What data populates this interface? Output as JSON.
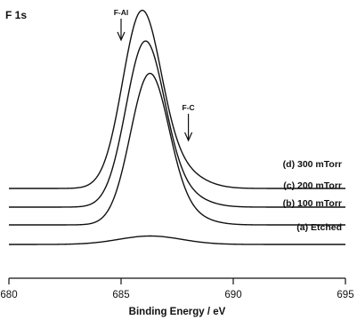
{
  "chart_data": {
    "type": "line",
    "title": "F 1s",
    "xlabel": "Binding Energy / eV",
    "xlim": [
      680,
      695
    ],
    "xticks": [
      680,
      685,
      690,
      695
    ],
    "annotations": [
      {
        "text": "F-Al",
        "x": 685.0
      },
      {
        "text": "F-C",
        "x": 688.0
      }
    ],
    "series": [
      {
        "name": "(d) 300 mTorr",
        "peak_x": 685.9,
        "peak_height": 1.0,
        "width": 0.85,
        "tail": 0.12,
        "tail_center": 687.3,
        "tail_width": 1.1
      },
      {
        "name": "(c) 200 mTorr",
        "peak_x": 686.05,
        "peak_height": 0.93,
        "width": 0.85,
        "tail": 0.1,
        "tail_center": 687.3,
        "tail_width": 1.1
      },
      {
        "name": "(b) 100 mTorr",
        "peak_x": 686.25,
        "peak_height": 0.85,
        "width": 0.85,
        "tail": 0.08,
        "tail_center": 687.4,
        "tail_width": 1.1
      },
      {
        "name": "(a) Etched",
        "peak_x": 686.3,
        "peak_height": 0.05,
        "width": 1.4,
        "tail": 0.0,
        "tail_center": 687.4,
        "tail_width": 1.1
      }
    ]
  }
}
